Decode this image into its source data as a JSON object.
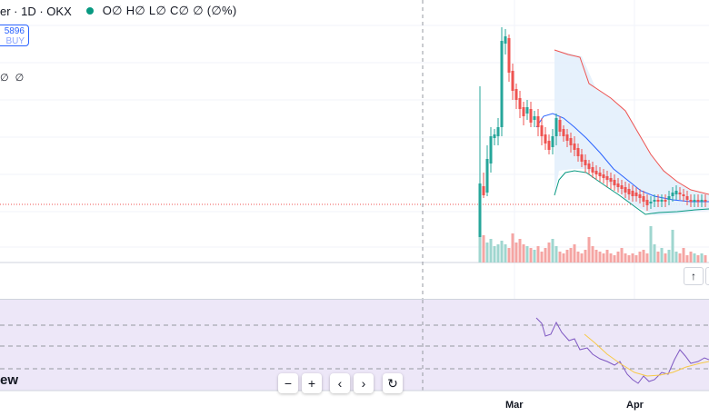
{
  "header": {
    "symbol_text": "er · 1D · OKX",
    "ohlc_text": "O∅ H∅ L∅ C∅ ∅ (∅%)",
    "status_color": "#089981"
  },
  "buy_box": {
    "price": "5896",
    "side": "BUY"
  },
  "indicator": {
    "values_text": "∅ ∅"
  },
  "watermark": {
    "text": "ew"
  },
  "nav_buttons": [
    {
      "name": "zoom-out-button",
      "label": "−"
    },
    {
      "name": "zoom-in-button",
      "label": "+"
    },
    {
      "name": "scroll-left-button",
      "label": "‹"
    },
    {
      "name": "scroll-right-button",
      "label": "›"
    },
    {
      "name": "reset-chart-button",
      "label": "↻"
    }
  ],
  "scroll_buttons": {
    "up_label": "↑"
  },
  "x_axis": {
    "labels": [
      "Mar",
      "Apr"
    ]
  },
  "colors": {
    "up": "#26a69a",
    "down": "#ef5350",
    "band_upper": "#ef5350",
    "band_middle": "#2962ff",
    "band_lower": "#089981",
    "rsi": "#7e57c2",
    "rsi_ma": "#f7c948"
  }
}
